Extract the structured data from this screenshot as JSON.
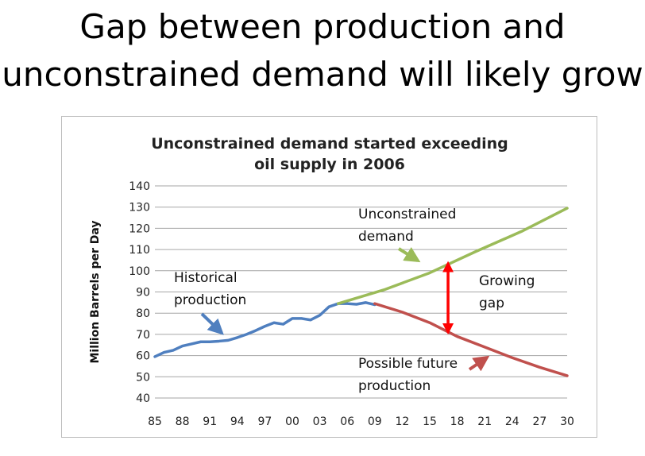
{
  "slide": {
    "title_lines": [
      "Gap between production and",
      "unconstrained demand will likely grow"
    ]
  },
  "chart_data": {
    "type": "line",
    "title_lines": [
      "Unconstrained demand started exceeding",
      "oil supply in 2006"
    ],
    "xlabel": "",
    "ylabel": "Million Barrels per Day",
    "xlim": [
      1985,
      2030
    ],
    "ylim": [
      40,
      140
    ],
    "x_tick_labels": [
      "85",
      "88",
      "91",
      "94",
      "97",
      "00",
      "03",
      "06",
      "09",
      "12",
      "15",
      "18",
      "21",
      "24",
      "27",
      "30"
    ],
    "x_tick_years": [
      1985,
      1988,
      1991,
      1994,
      1997,
      2000,
      2003,
      2006,
      2009,
      2012,
      2015,
      2018,
      2021,
      2024,
      2027,
      2030
    ],
    "y_ticks": [
      40,
      50,
      60,
      70,
      80,
      90,
      100,
      110,
      120,
      130,
      140
    ],
    "grid": true,
    "legend": "none",
    "series": [
      {
        "color": "#4f7fbf",
        "points": [
          [
            1985,
            59.5
          ],
          [
            1986,
            61.5
          ],
          [
            1987,
            62.5
          ],
          [
            1988,
            64.5
          ],
          [
            1989,
            65.5
          ],
          [
            1990,
            66.5
          ],
          [
            1991,
            66.5
          ],
          [
            1992,
            66.8
          ],
          [
            1993,
            67.2
          ],
          [
            1994,
            68.5
          ],
          [
            1995,
            70
          ],
          [
            1996,
            71.8
          ],
          [
            1997,
            73.8
          ],
          [
            1998,
            75.5
          ],
          [
            1999,
            74.8
          ],
          [
            2000,
            77.5
          ],
          [
            2001,
            77.5
          ],
          [
            2002,
            76.8
          ],
          [
            2003,
            79
          ],
          [
            2004,
            83
          ],
          [
            2005,
            84.5
          ],
          [
            2006,
            84.5
          ],
          [
            2007,
            84.2
          ],
          [
            2008,
            85
          ],
          [
            2009,
            84
          ]
        ]
      },
      {
        "color": "#9bbb59",
        "points": [
          [
            2005,
            84.5
          ],
          [
            2010,
            91
          ],
          [
            2015,
            99
          ],
          [
            2020,
            109
          ],
          [
            2025,
            118.5
          ],
          [
            2030,
            129.5
          ]
        ]
      },
      {
        "color": "#c0504d",
        "points": [
          [
            2009,
            84.5
          ],
          [
            2012,
            80.5
          ],
          [
            2015,
            75.5
          ],
          [
            2018,
            69
          ],
          [
            2021,
            64
          ],
          [
            2024,
            59
          ],
          [
            2027,
            54.5
          ],
          [
            2030,
            50.5
          ]
        ]
      }
    ],
    "annotations": [
      {
        "id": "historical",
        "lines": [
          "Historical",
          "production"
        ]
      },
      {
        "id": "demand",
        "lines": [
          "Unconstrained",
          "demand"
        ]
      },
      {
        "id": "gap",
        "lines": [
          "Growing",
          "gap"
        ]
      },
      {
        "id": "future",
        "lines": [
          "Possible future",
          "production"
        ]
      }
    ],
    "gap_marker": {
      "x": 2017,
      "y_top": 105,
      "y_bottom": 69.5,
      "color": "#ff0000"
    }
  }
}
